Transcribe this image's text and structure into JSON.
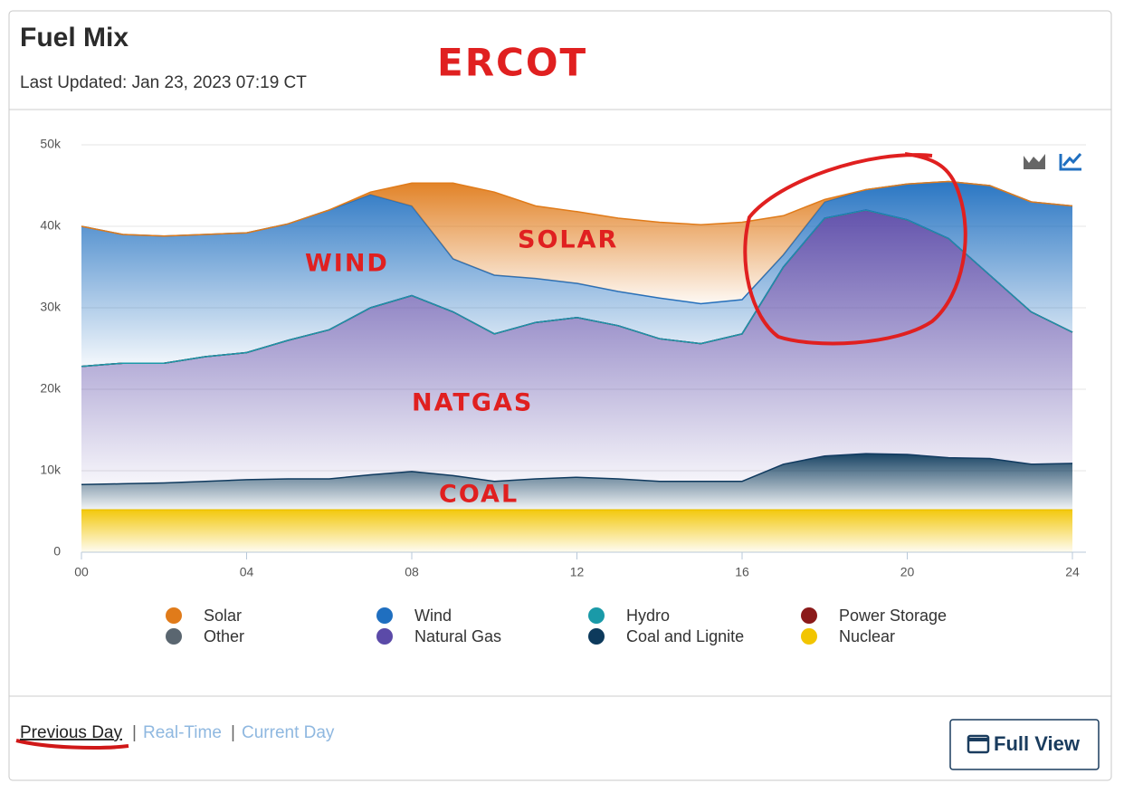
{
  "header": {
    "title": "Fuel Mix",
    "updated": "Last Updated: Jan 23, 2023 07:19 CT"
  },
  "chart_data": {
    "type": "stacked-area",
    "x": [
      0,
      1,
      2,
      3,
      4,
      5,
      6,
      7,
      8,
      9,
      10,
      11,
      12,
      13,
      14,
      15,
      16,
      17,
      18,
      19,
      20,
      21,
      22,
      23,
      24
    ],
    "xlim": [
      0,
      24
    ],
    "xticks": [
      {
        "value": 0,
        "label": "00"
      },
      {
        "value": 4,
        "label": "04"
      },
      {
        "value": 8,
        "label": "08"
      },
      12,
      16,
      20,
      24
    ],
    "ylim": [
      0,
      50000
    ],
    "yticks": [
      0,
      {
        "value": 10000,
        "label": "10k"
      },
      {
        "value": 20000,
        "label": "20k"
      },
      {
        "value": 30000,
        "label": "30k"
      },
      {
        "value": 40000,
        "label": "40k"
      },
      {
        "value": 50000,
        "label": "50k"
      }
    ],
    "grid": true,
    "series": [
      {
        "name": "Solar",
        "color": "#e07b1a",
        "values": [
          0,
          0,
          0,
          0,
          0,
          0,
          0,
          300,
          2800,
          9300,
          10200,
          8900,
          8800,
          9000,
          9300,
          9700,
          9500,
          4800,
          300,
          0,
          0,
          0,
          0,
          0,
          0
        ]
      },
      {
        "name": "Wind",
        "color": "#1f6fc0",
        "values": [
          17200,
          15800,
          15600,
          15000,
          14700,
          14300,
          14700,
          13900,
          11000,
          6500,
          7200,
          5400,
          4200,
          4200,
          5000,
          4900,
          4200,
          1500,
          2000,
          2500,
          4400,
          7000,
          11000,
          13500,
          15500
        ]
      },
      {
        "name": "Hydro",
        "color": "#1a9aa8",
        "values": [
          0,
          0,
          0,
          0,
          0,
          0,
          0,
          0,
          0,
          0,
          0,
          0,
          0,
          0,
          0,
          0,
          0,
          0,
          0,
          0,
          0,
          0,
          0,
          0,
          0
        ]
      },
      {
        "name": "Power Storage",
        "color": "#8b1a1a",
        "values": [
          0,
          0,
          0,
          0,
          0,
          0,
          0,
          0,
          0,
          0,
          0,
          0,
          0,
          0,
          0,
          0,
          0,
          0,
          0,
          0,
          0,
          0,
          0,
          0,
          0
        ]
      },
      {
        "name": "Other",
        "color": "#5a6670",
        "values": [
          0,
          0,
          0,
          0,
          0,
          0,
          0,
          0,
          0,
          0,
          0,
          0,
          0,
          0,
          0,
          0,
          0,
          0,
          0,
          0,
          0,
          0,
          0,
          0,
          0
        ]
      },
      {
        "name": "Natural Gas",
        "color": "#5b4aa8",
        "values": [
          14500,
          14800,
          14700,
          15300,
          15600,
          17000,
          18300,
          20500,
          21600,
          20100,
          18100,
          19200,
          19600,
          18800,
          17500,
          16900,
          18100,
          24200,
          29200,
          29900,
          28800,
          26900,
          22500,
          18700,
          16100
        ]
      },
      {
        "name": "Coal and Lignite",
        "color": "#0d3a5c",
        "values": [
          3100,
          3200,
          3300,
          3500,
          3700,
          3800,
          3800,
          4300,
          4700,
          4200,
          3500,
          3800,
          4000,
          3800,
          3500,
          3500,
          3500,
          5600,
          6600,
          6900,
          6800,
          6400,
          6300,
          5600,
          5700
        ]
      },
      {
        "name": "Nuclear",
        "color": "#f2c500",
        "values": [
          5200,
          5200,
          5200,
          5200,
          5200,
          5200,
          5200,
          5200,
          5200,
          5200,
          5200,
          5200,
          5200,
          5200,
          5200,
          5200,
          5200,
          5200,
          5200,
          5200,
          5200,
          5200,
          5200,
          5200,
          5200
        ]
      }
    ],
    "annotations": [
      "ERCOT",
      "WIND",
      "SOLAR",
      "NATGAS",
      "COAL"
    ]
  },
  "footer": {
    "links": [
      "Previous Day",
      "Real-Time",
      "Current Day"
    ],
    "separator": "|",
    "button": "Full View"
  }
}
